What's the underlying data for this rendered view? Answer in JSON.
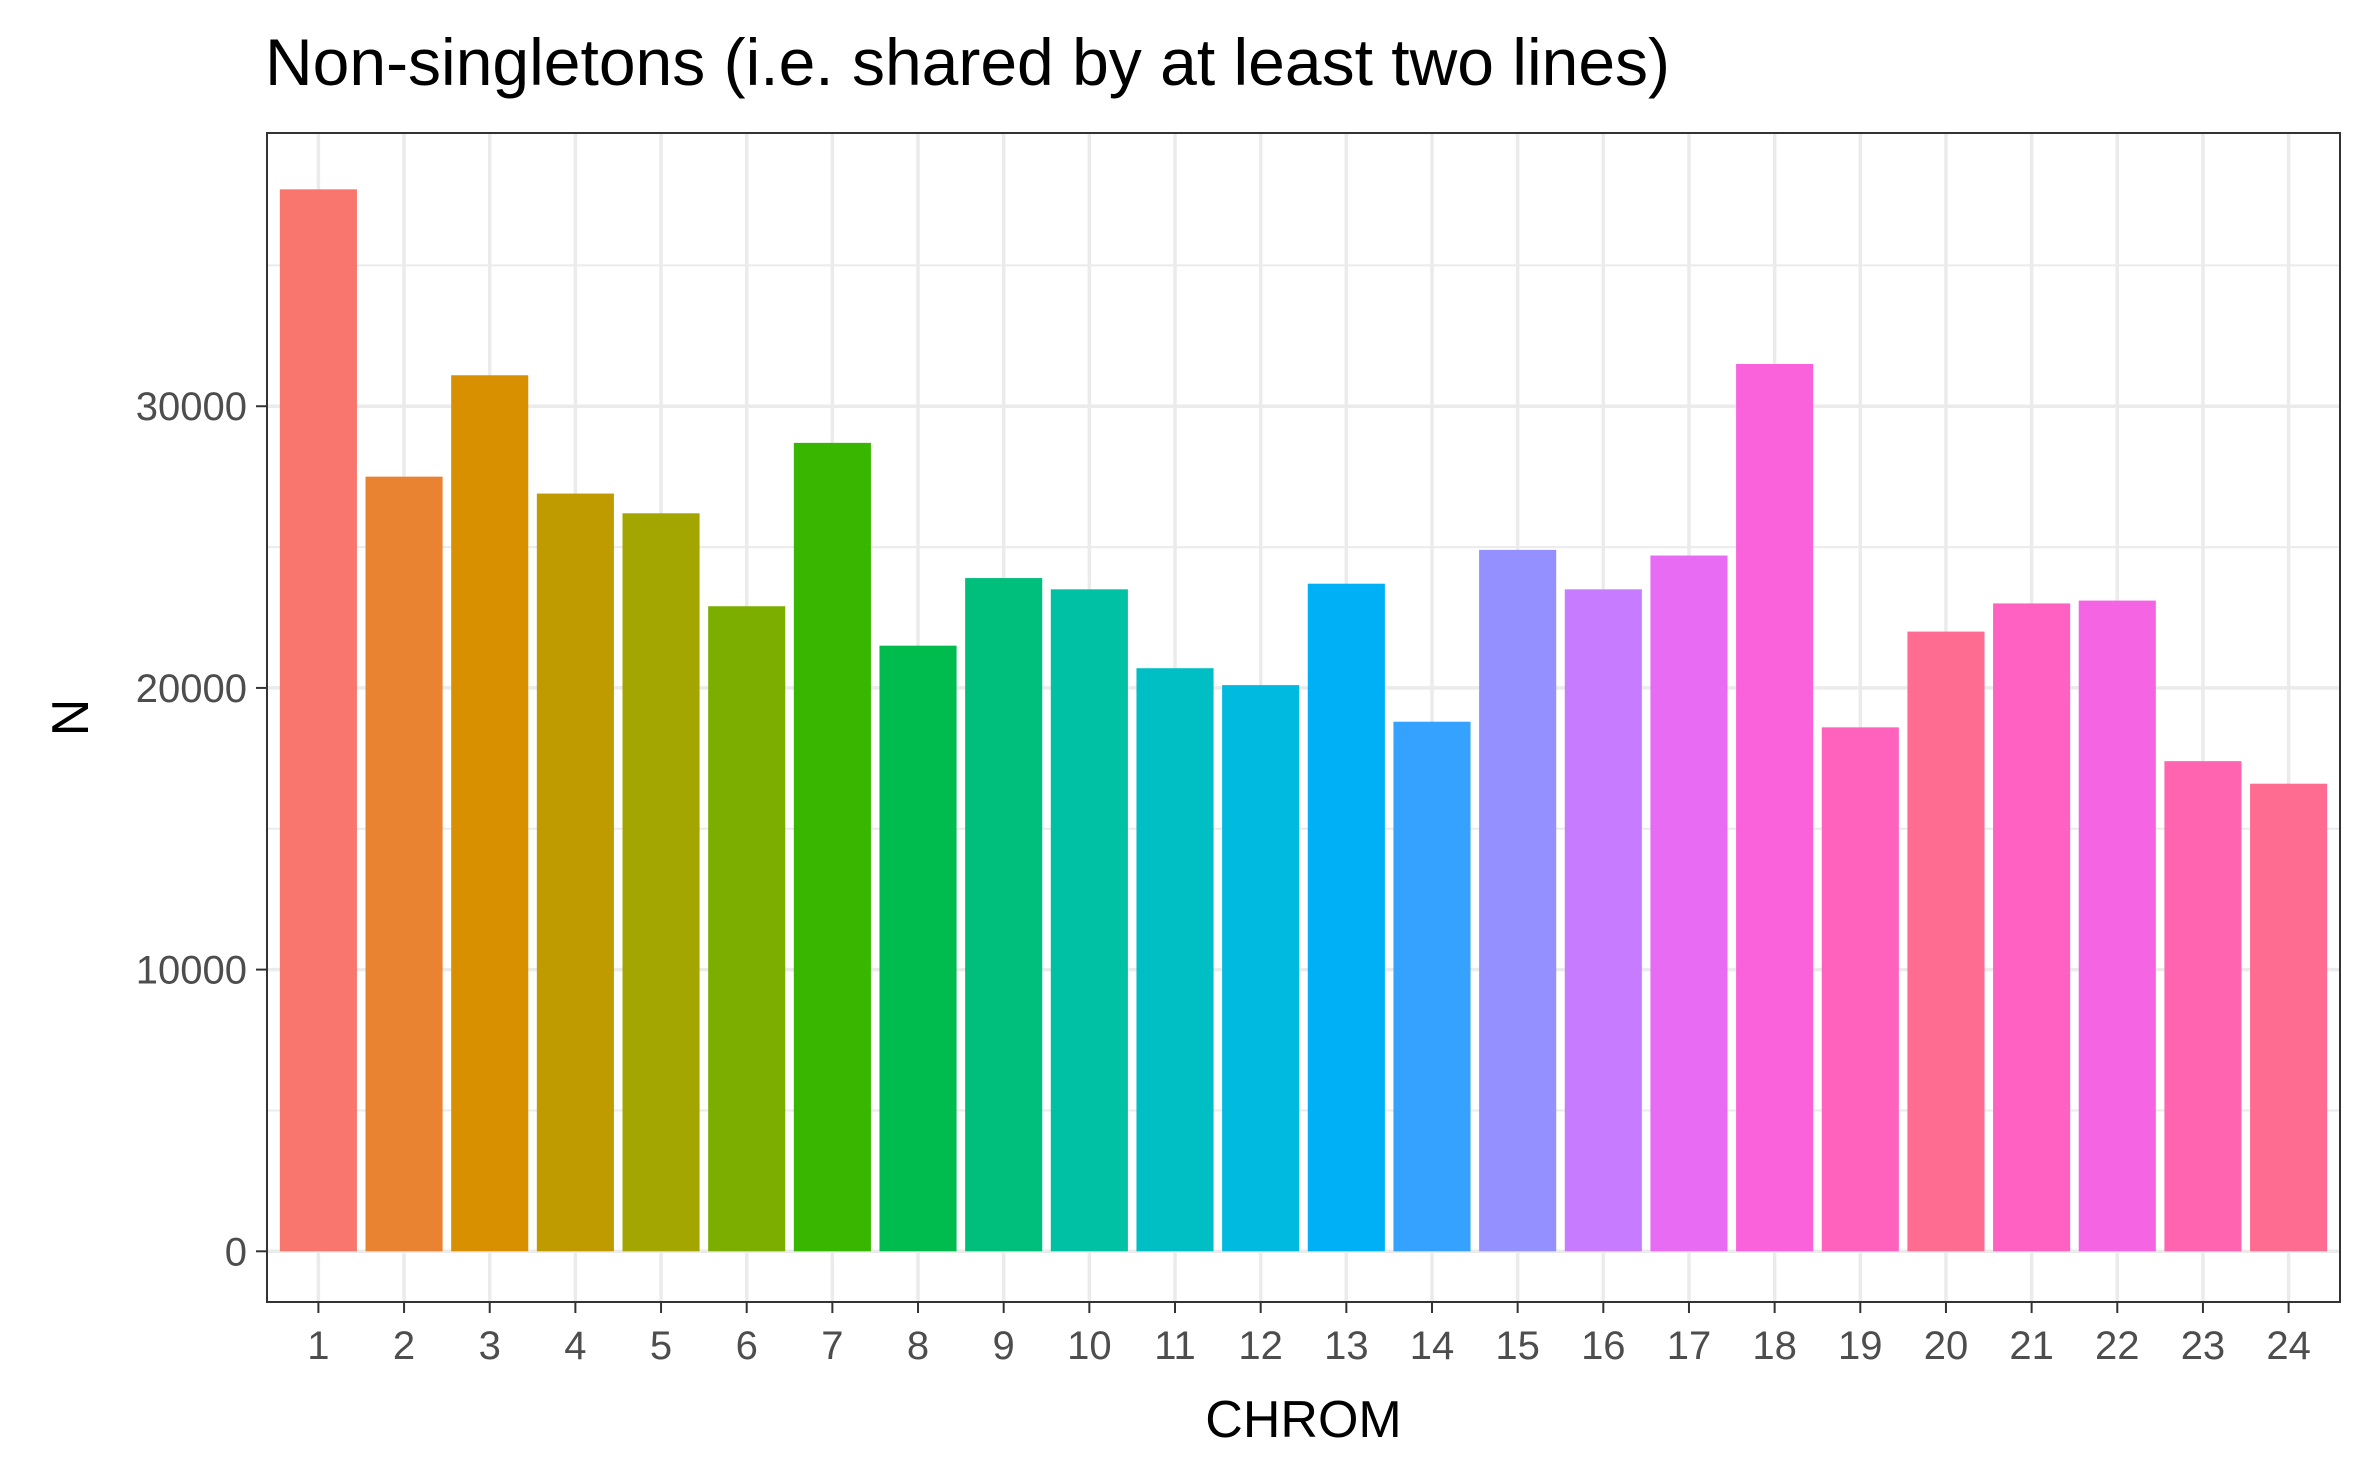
{
  "chart_data": {
    "type": "bar",
    "title": "Non-singletons (i.e. shared by at least two lines)",
    "xlabel": "CHROM",
    "ylabel": "N",
    "categories": [
      "1",
      "2",
      "3",
      "4",
      "5",
      "6",
      "7",
      "8",
      "9",
      "10",
      "11",
      "12",
      "13",
      "14",
      "15",
      "16",
      "17",
      "18",
      "19",
      "20",
      "21",
      "22",
      "23",
      "24"
    ],
    "values": [
      37700,
      27500,
      31100,
      26900,
      26200,
      22900,
      28700,
      21500,
      23900,
      23500,
      20700,
      20100,
      23700,
      18800,
      24900,
      23500,
      24700,
      31500,
      18600,
      22000,
      23000,
      23100,
      17400,
      16600
    ],
    "colors": [
      "#F8766D",
      "#EA8331",
      "#D89000",
      "#C09B00",
      "#A3A500",
      "#7CAE00",
      "#39B600",
      "#00BB4E",
      "#00BF7D",
      "#00C1A3",
      "#00BFC4",
      "#00BAE0",
      "#00B0F6",
      "#35A2FF",
      "#9590FF",
      "#C77CFF",
      "#E76BF3",
      "#FA62DB",
      "#FF62BC",
      "#FF6C91",
      "#FF61C3",
      "#F564E3",
      "#FF64B0",
      "#FF6C91"
    ],
    "yticks": [
      0,
      10000,
      20000,
      30000
    ],
    "ylim": [
      -1800,
      39700
    ],
    "grid": true,
    "legend": "none"
  }
}
